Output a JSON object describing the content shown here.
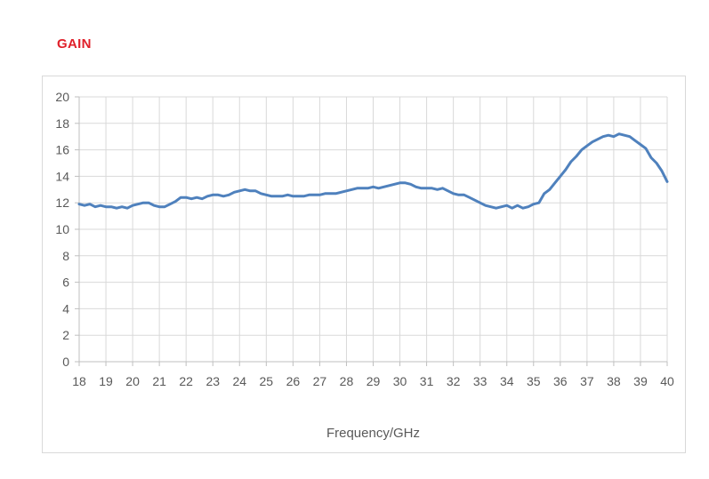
{
  "title": "GAIN",
  "colors": {
    "title": "#e0202a",
    "series": "#4f81bd",
    "grid": "#d9d9d9",
    "axis": "#bfbfbf",
    "text": "#595959"
  },
  "chart_data": {
    "type": "line",
    "title": "GAIN",
    "xlabel": "Frequency/GHz",
    "ylabel": "",
    "xlim": [
      18,
      40
    ],
    "ylim": [
      0,
      20
    ],
    "x_ticks": [
      18,
      19,
      20,
      21,
      22,
      23,
      24,
      25,
      26,
      27,
      28,
      29,
      30,
      31,
      32,
      33,
      34,
      35,
      36,
      37,
      38,
      39,
      40
    ],
    "y_ticks": [
      0,
      2,
      4,
      6,
      8,
      10,
      12,
      14,
      16,
      18,
      20
    ],
    "grid": true,
    "legend": "none",
    "series": [
      {
        "x": [
          18,
          18.2,
          18.4,
          18.6,
          18.8,
          19,
          19.2,
          19.4,
          19.6,
          19.8,
          20,
          20.2,
          20.4,
          20.6,
          20.8,
          21,
          21.2,
          21.4,
          21.6,
          21.8,
          22,
          22.2,
          22.4,
          22.6,
          22.8,
          23,
          23.2,
          23.4,
          23.6,
          23.8,
          24,
          24.2,
          24.4,
          24.6,
          24.8,
          25,
          25.2,
          25.4,
          25.6,
          25.8,
          26,
          26.2,
          26.4,
          26.6,
          26.8,
          27,
          27.2,
          27.4,
          27.6,
          27.8,
          28,
          28.2,
          28.4,
          28.6,
          28.8,
          29,
          29.2,
          29.4,
          29.6,
          29.8,
          30,
          30.2,
          30.4,
          30.6,
          30.8,
          31,
          31.2,
          31.4,
          31.6,
          31.8,
          32,
          32.2,
          32.4,
          32.6,
          32.8,
          33,
          33.2,
          33.4,
          33.6,
          33.8,
          34,
          34.2,
          34.4,
          34.6,
          34.8,
          35,
          35.2,
          35.4,
          35.6,
          35.8,
          36,
          36.2,
          36.4,
          36.6,
          36.8,
          37,
          37.2,
          37.4,
          37.6,
          37.8,
          38,
          38.2,
          38.4,
          38.6,
          38.8,
          39,
          39.2,
          39.4,
          39.6,
          39.8,
          40
        ],
        "values": [
          11.9,
          11.8,
          11.9,
          11.7,
          11.8,
          11.7,
          11.7,
          11.6,
          11.7,
          11.6,
          11.8,
          11.9,
          12.0,
          12.0,
          11.8,
          11.7,
          11.7,
          11.9,
          12.1,
          12.4,
          12.4,
          12.3,
          12.4,
          12.3,
          12.5,
          12.6,
          12.6,
          12.5,
          12.6,
          12.8,
          12.9,
          13.0,
          12.9,
          12.9,
          12.7,
          12.6,
          12.5,
          12.5,
          12.5,
          12.6,
          12.5,
          12.5,
          12.5,
          12.6,
          12.6,
          12.6,
          12.7,
          12.7,
          12.7,
          12.8,
          12.9,
          13.0,
          13.1,
          13.1,
          13.1,
          13.2,
          13.1,
          13.2,
          13.3,
          13.4,
          13.5,
          13.5,
          13.4,
          13.2,
          13.1,
          13.1,
          13.1,
          13.0,
          13.1,
          12.9,
          12.7,
          12.6,
          12.6,
          12.4,
          12.2,
          12.0,
          11.8,
          11.7,
          11.6,
          11.7,
          11.8,
          11.6,
          11.8,
          11.6,
          11.7,
          11.9,
          12.0,
          12.7,
          13.0,
          13.5,
          14.0,
          14.5,
          15.1,
          15.5,
          16.0,
          16.3,
          16.6,
          16.8,
          17.0,
          17.1,
          17.0,
          17.2,
          17.1,
          17.0,
          16.7,
          16.4,
          16.1,
          15.4,
          15.0,
          14.4,
          13.6
        ]
      }
    ]
  }
}
